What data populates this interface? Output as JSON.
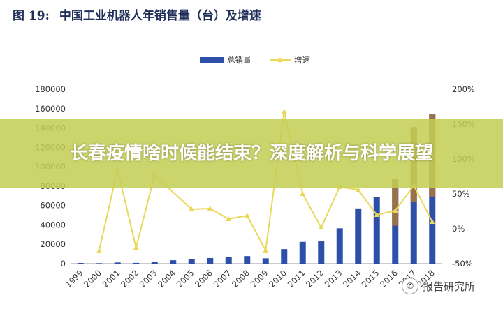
{
  "figure": {
    "number": "图 19:",
    "title": "中国工业机器人年销售量（台）及增速"
  },
  "banner": {
    "text": "长春疫情啥时候能结束？深度解析与科学展望"
  },
  "watermark": {
    "text": "报告研究所",
    "icon": "wechat-icon"
  },
  "chart_data": {
    "type": "bar",
    "categories": [
      "1999",
      "2000",
      "2001",
      "2002",
      "2003",
      "2004",
      "2005",
      "2006",
      "2007",
      "2008",
      "2009",
      "2010",
      "2011",
      "2012",
      "2013",
      "2014",
      "2015",
      "2016",
      "2017",
      "2018"
    ],
    "series": [
      {
        "name": "总销量",
        "kind": "bar",
        "axis": "left",
        "color": "#2e4fa8",
        "values": [
          700,
          500,
          1200,
          800,
          1500,
          3500,
          4500,
          5800,
          6500,
          7800,
          5500,
          15000,
          22500,
          23000,
          36500,
          57000,
          69000,
          87000,
          141000,
          154000
        ]
      },
      {
        "name": "增速",
        "kind": "line",
        "axis": "right",
        "color": "#ead85a",
        "values": [
          null,
          -32,
          85,
          -27,
          77,
          null,
          28,
          29,
          14,
          19,
          -31,
          168,
          50,
          2,
          60,
          56,
          20,
          26,
          62,
          10
        ]
      }
    ],
    "y_left": {
      "min": 0,
      "max": 180000,
      "ticks": [
        0,
        20000,
        40000,
        60000,
        80000,
        100000,
        120000,
        140000,
        160000,
        180000
      ]
    },
    "y_right": {
      "min": -50,
      "max": 200,
      "ticks": [
        "-50%",
        "0%",
        "50%",
        "100%",
        "150%",
        "200%"
      ],
      "tick_values": [
        -50,
        0,
        50,
        100,
        150,
        200
      ]
    },
    "overlay_bars": [
      {
        "category": "2016",
        "value": 87000,
        "color": "#9b7147"
      },
      {
        "category": "2017",
        "value": 141000,
        "color": "#9b7147"
      },
      {
        "category": "2018",
        "value": 154000,
        "color": "#9b7147"
      }
    ],
    "legend": {
      "placement": "top-center"
    },
    "grid": false
  }
}
